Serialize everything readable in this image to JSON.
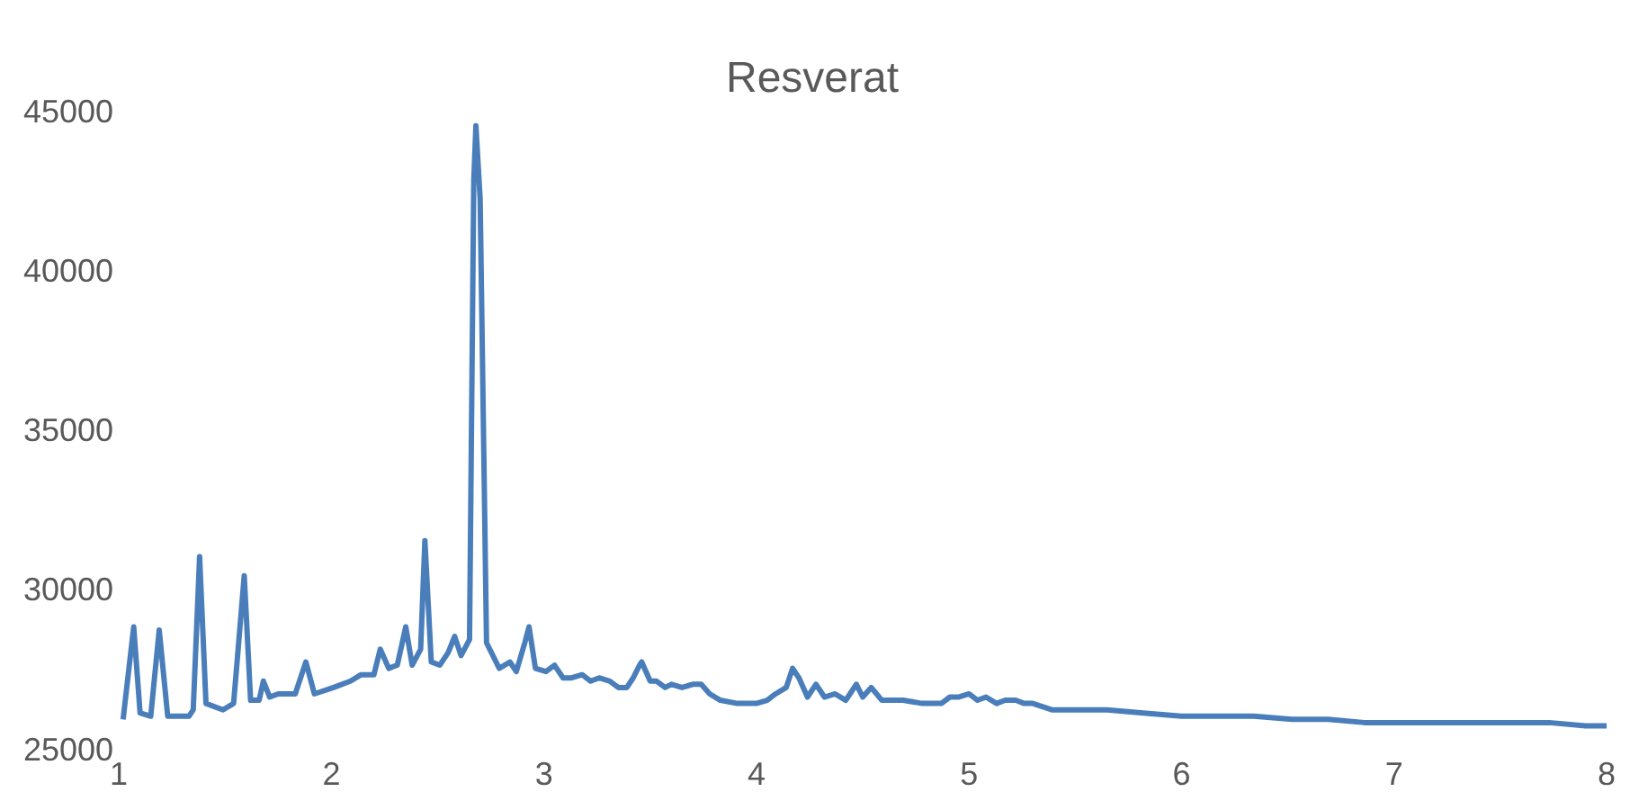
{
  "chart_data": {
    "type": "line",
    "title": "Resverat",
    "color": "#4a7ebb",
    "grid": false,
    "legend": false,
    "marker": "none",
    "line_style": "solid",
    "xlim": [
      1,
      8
    ],
    "xticks": [
      1,
      2,
      3,
      4,
      5,
      6,
      7,
      8
    ],
    "ylim": [
      25000,
      45000
    ],
    "yticks": [
      25000,
      30000,
      35000,
      40000,
      45000
    ],
    "x": [
      1.02,
      1.07,
      1.1,
      1.15,
      1.19,
      1.23,
      1.29,
      1.33,
      1.35,
      1.38,
      1.41,
      1.49,
      1.54,
      1.59,
      1.62,
      1.66,
      1.68,
      1.71,
      1.75,
      1.83,
      1.88,
      1.92,
      2.01,
      2.09,
      2.14,
      2.2,
      2.23,
      2.27,
      2.31,
      2.35,
      2.38,
      2.42,
      2.44,
      2.47,
      2.51,
      2.55,
      2.58,
      2.61,
      2.65,
      2.67,
      2.68,
      2.7,
      2.73,
      2.79,
      2.84,
      2.87,
      2.91,
      2.93,
      2.96,
      3.01,
      3.05,
      3.09,
      3.13,
      3.18,
      3.22,
      3.26,
      3.31,
      3.35,
      3.39,
      3.42,
      3.45,
      3.46,
      3.5,
      3.53,
      3.57,
      3.6,
      3.65,
      3.7,
      3.74,
      3.78,
      3.83,
      3.91,
      4.0,
      4.05,
      4.09,
      4.14,
      4.17,
      4.2,
      4.24,
      4.28,
      4.32,
      4.37,
      4.42,
      4.47,
      4.5,
      4.54,
      4.59,
      4.69,
      4.78,
      4.87,
      4.91,
      4.95,
      5.0,
      5.04,
      5.08,
      5.13,
      5.17,
      5.22,
      5.26,
      5.3,
      5.39,
      5.48,
      5.65,
      5.82,
      6.0,
      6.17,
      6.34,
      6.52,
      6.69,
      6.86,
      7.04,
      7.21,
      7.38,
      7.56,
      7.73,
      7.9,
      8.0
    ],
    "values": [
      26000,
      28900,
      26200,
      26100,
      28800,
      26100,
      26100,
      26100,
      26300,
      31100,
      26500,
      26300,
      26500,
      30500,
      26600,
      26600,
      27200,
      26700,
      26800,
      26800,
      27800,
      26800,
      27000,
      27200,
      27400,
      27400,
      28200,
      27600,
      27700,
      28900,
      27700,
      28200,
      31600,
      27800,
      27700,
      28100,
      28600,
      28000,
      28500,
      42900,
      44600,
      42300,
      28400,
      27600,
      27800,
      27500,
      28400,
      28900,
      27600,
      27500,
      27700,
      27300,
      27300,
      27400,
      27200,
      27300,
      27200,
      27000,
      27000,
      27300,
      27700,
      27800,
      27200,
      27200,
      27000,
      27100,
      27000,
      27100,
      27100,
      26800,
      26600,
      26500,
      26500,
      26600,
      26800,
      27000,
      27600,
      27300,
      26700,
      27100,
      26700,
      26800,
      26600,
      27100,
      26700,
      27000,
      26600,
      26600,
      26500,
      26500,
      26700,
      26700,
      26800,
      26600,
      26700,
      26500,
      26600,
      26600,
      26500,
      26500,
      26300,
      26300,
      26300,
      26200,
      26100,
      26100,
      26100,
      26000,
      26000,
      25900,
      25900,
      25900,
      25900,
      25900,
      25900,
      25800,
      25800
    ]
  }
}
